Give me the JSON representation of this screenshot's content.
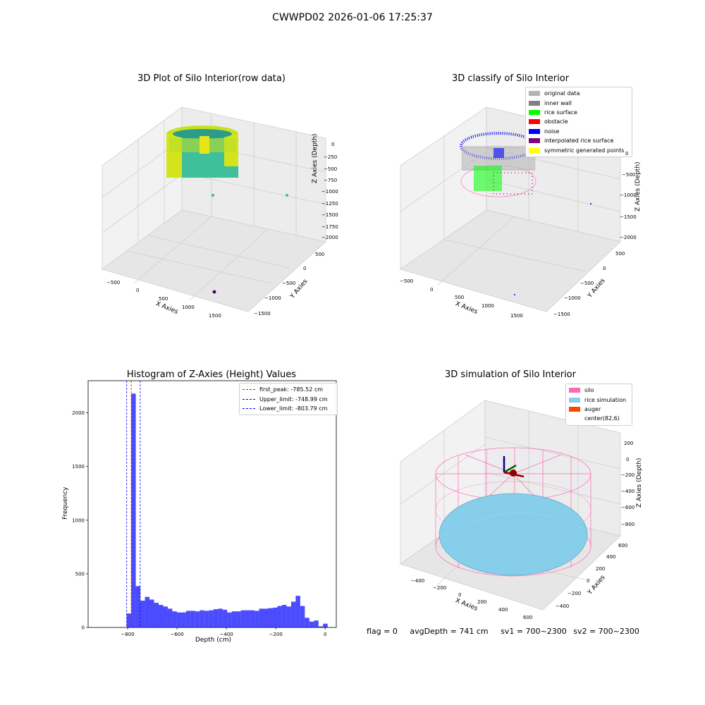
{
  "suptitle": "CWWPD02 2026-01-06 17:25:37",
  "colors": {
    "original": "#b3b3b3",
    "inner_wall": "#808080",
    "rice_surface": "#00ff00",
    "obstacle": "#ff0000",
    "noise": "#0000ff",
    "interpolated": "#800080",
    "symmetric": "#ffff00",
    "silo": "#ff69b4",
    "rice_sim": "#87ceeb",
    "auger": "#ff4500",
    "hist_bar": "#0000ff",
    "first_peak": "#ff0000",
    "limit_line": "#0000ff"
  },
  "status": {
    "flag": "flag = 0",
    "avg_depth": "avgDepth = 741 cm",
    "sv1": "sv1 = 700~2300",
    "sv2": "sv2 = 700~2300"
  },
  "chart_data": [
    {
      "type": "scatter",
      "title": "3D Plot of Silo Interior(row data)",
      "xlabel": "X Axies",
      "ylabel": "Y Axies",
      "zlabel": "Z Axies (Depth)",
      "xticks": [
        "−500",
        "0",
        "500",
        "1000",
        "1500"
      ],
      "yticks": [
        "500",
        "0",
        "−500",
        "−1000",
        "−1500"
      ],
      "zticks": [
        "0",
        "−250",
        "−500",
        "−750",
        "−1000",
        "−1250",
        "−1500",
        "−1750",
        "−2000"
      ],
      "colormap": "viridis"
    },
    {
      "type": "scatter",
      "title": "3D classify of Silo Interior",
      "xlabel": "X Axies",
      "ylabel": "Y Axies",
      "zlabel": "Z Axies (Depth)",
      "xticks": [
        "−500",
        "0",
        "500",
        "1000",
        "1500"
      ],
      "yticks": [
        "500",
        "0",
        "−500",
        "−1000",
        "−1500"
      ],
      "zticks": [
        "0",
        "−500",
        "−1000",
        "−1500",
        "−2000"
      ],
      "legend": [
        "original data",
        "inner wall",
        "rice surface",
        "obstacle",
        "noise",
        "interpolated rice surface",
        "symmetric generated points"
      ]
    },
    {
      "type": "bar",
      "title": "Histogram of Z-Axies (Height) Values",
      "xlabel": "Depth (cm)",
      "ylabel": "Frequency",
      "xlim": [
        -960,
        45
      ],
      "ylim": [
        0,
        2300
      ],
      "xticks": [
        -800,
        -600,
        -400,
        -200,
        0
      ],
      "xticklabels": [
        "−800",
        "−600",
        "−400",
        "−200",
        "0"
      ],
      "yticks": [
        0,
        500,
        1000,
        1500,
        2000
      ],
      "yticklabels": [
        "0",
        "500",
        "1000",
        "1500",
        "2000"
      ],
      "bin_width": 18.5,
      "bin_starts": [
        -804,
        -785.5,
        -767,
        -748.5,
        -730,
        -711.5,
        -693,
        -674.5,
        -656,
        -637.5,
        -619,
        -600.5,
        -582,
        -563.5,
        -545,
        -526.5,
        -508,
        -489.5,
        -471,
        -452.5,
        -434,
        -415.5,
        -397,
        -378.5,
        -360,
        -341.5,
        -323,
        -304.5,
        -286,
        -267.5,
        -249,
        -230.5,
        -212,
        -193.5,
        -175,
        -156.5,
        -138,
        -119.5,
        -101,
        -82.5,
        -64,
        -45.5,
        -27,
        -8.5
      ],
      "values": [
        130,
        2180,
        385,
        250,
        285,
        260,
        230,
        210,
        195,
        175,
        150,
        140,
        140,
        155,
        155,
        150,
        160,
        155,
        160,
        170,
        175,
        165,
        140,
        150,
        150,
        160,
        160,
        160,
        155,
        175,
        175,
        180,
        185,
        200,
        210,
        195,
        240,
        295,
        200,
        90,
        55,
        65,
        10,
        35
      ],
      "vlines": [
        {
          "label": "first_peak: -785.52 cm",
          "x": -785.52,
          "color": "#ff0000"
        },
        {
          "label": "Upper_limit: -748.99 cm",
          "x": -748.99,
          "color": "#0000ff"
        },
        {
          "label": "Lower_limit: -803.79 cm",
          "x": -803.79,
          "color": "#0000ff"
        }
      ]
    },
    {
      "type": "scatter",
      "title": "3D simulation of Silo Interior",
      "xlabel": "X Axies",
      "ylabel": "Y Axies",
      "zlabel": "Z Axies (Depth)",
      "xticks": [
        "−400",
        "−200",
        "0",
        "200",
        "400",
        "600"
      ],
      "yticks": [
        "600",
        "400",
        "200",
        "0",
        "−200",
        "−400"
      ],
      "zticks": [
        "200",
        "0",
        "−200",
        "−400",
        "−600",
        "−800"
      ],
      "legend": [
        "silo",
        "rice simulation",
        "auger",
        "center(82,6)"
      ]
    }
  ]
}
